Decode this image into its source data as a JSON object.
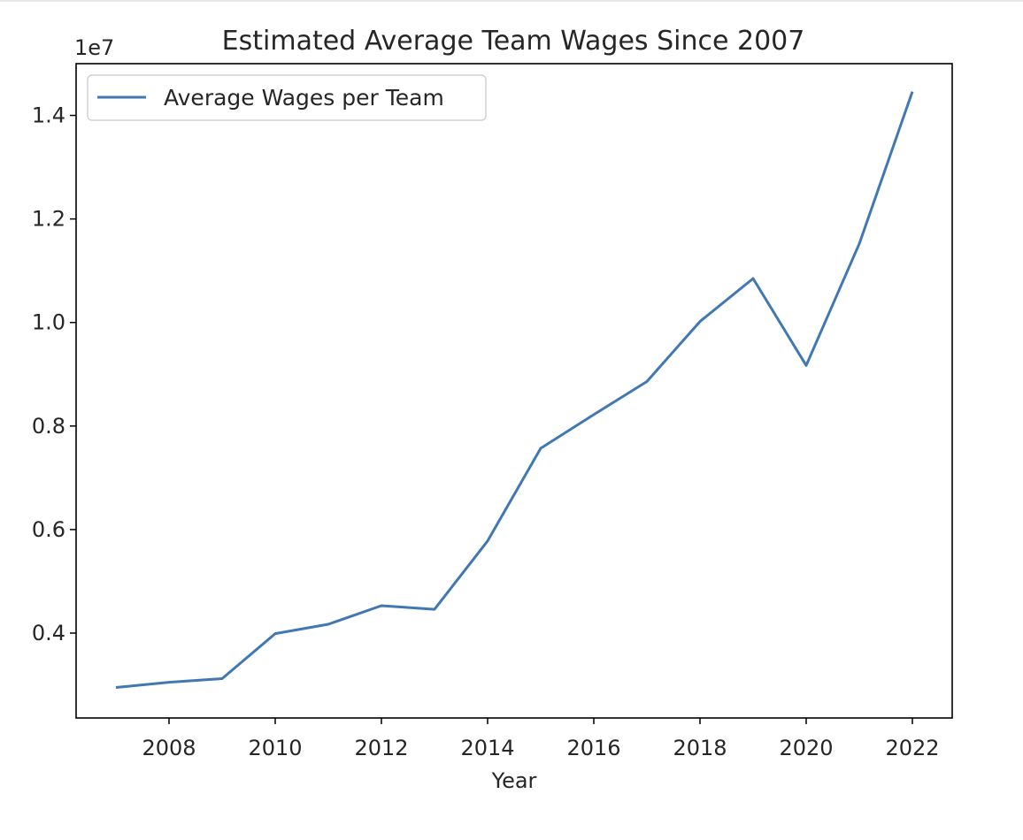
{
  "chart_data": {
    "type": "line",
    "title": "Estimated Average Team Wages Since 2007",
    "xlabel": "Year",
    "ylabel": "",
    "y_offset_text": "1e7",
    "x": [
      2007,
      2008,
      2009,
      2010,
      2011,
      2012,
      2013,
      2014,
      2015,
      2016,
      2017,
      2018,
      2019,
      2020,
      2021,
      2022
    ],
    "series": [
      {
        "name": "Average Wages per Team",
        "color": "#4178b4",
        "values": [
          2950000,
          3050000,
          3120000,
          3990000,
          4170000,
          4530000,
          4460000,
          5780000,
          7570000,
          8220000,
          8860000,
          10020000,
          10850000,
          9170000,
          11520000,
          14460000
        ]
      }
    ],
    "xlim": [
      2006.25,
      2022.75
    ],
    "ylim": [
      2.36,
      15.0
    ],
    "xticks": [
      2008,
      2010,
      2012,
      2014,
      2016,
      2018,
      2020,
      2022
    ],
    "yticks": [
      0.4,
      0.6,
      0.8,
      1.0,
      1.2,
      1.4
    ],
    "ytick_labels": [
      "0.4",
      "0.6",
      "0.8",
      "1.0",
      "1.2",
      "1.4"
    ],
    "legend_position": "upper-left",
    "grid": false
  }
}
